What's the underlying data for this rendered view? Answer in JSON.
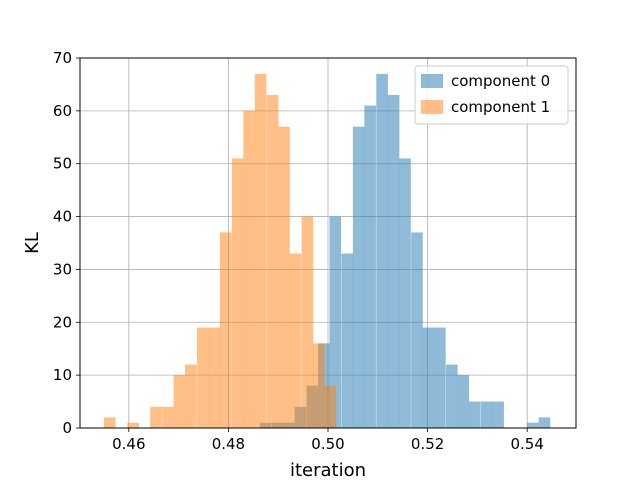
{
  "chart_data": {
    "type": "bar",
    "title": "",
    "xlabel": "iteration",
    "ylabel": "KL",
    "xlim": [
      0.4502,
      0.5498
    ],
    "ylim": [
      0,
      70
    ],
    "xticks": [
      "0.46",
      "0.48",
      "0.50",
      "0.52",
      "0.54"
    ],
    "yticks": [
      "0",
      "10",
      "20",
      "30",
      "40",
      "50",
      "60",
      "70"
    ],
    "grid": true,
    "legend": {
      "position": "top-right"
    },
    "bin_width": 0.00233,
    "series": [
      {
        "name": "component 0",
        "color": "#1f77b4",
        "opacity": 0.5,
        "bin_starts": [
          0.4863,
          0.4887,
          0.491,
          0.4933,
          0.4957,
          0.498,
          0.5003,
          0.5027,
          0.505,
          0.5073,
          0.5097,
          0.512,
          0.5143,
          0.5167,
          0.519,
          0.5213,
          0.5237,
          0.526,
          0.5283,
          0.5307,
          0.533,
          0.5353,
          0.5377,
          0.54,
          0.5423
        ],
        "values": [
          1,
          1,
          1,
          4,
          8,
          16,
          40,
          33,
          57,
          61,
          67,
          63,
          51,
          37,
          19,
          19,
          12,
          10,
          5,
          5,
          5,
          0,
          0,
          1,
          2
        ]
      },
      {
        "name": "component 1",
        "color": "#ff7f0e",
        "opacity": 0.5,
        "bin_starts": [
          0.455,
          0.4573,
          0.4597,
          0.462,
          0.4643,
          0.4667,
          0.469,
          0.4713,
          0.4737,
          0.476,
          0.4783,
          0.4807,
          0.483,
          0.4853,
          0.4877,
          0.49,
          0.4923,
          0.4947,
          0.497,
          0.4993
        ],
        "values": [
          2,
          0,
          1,
          0,
          4,
          4,
          10,
          12,
          19,
          19,
          37,
          51,
          60,
          67,
          63,
          57,
          33,
          40,
          16,
          8
        ]
      }
    ]
  }
}
